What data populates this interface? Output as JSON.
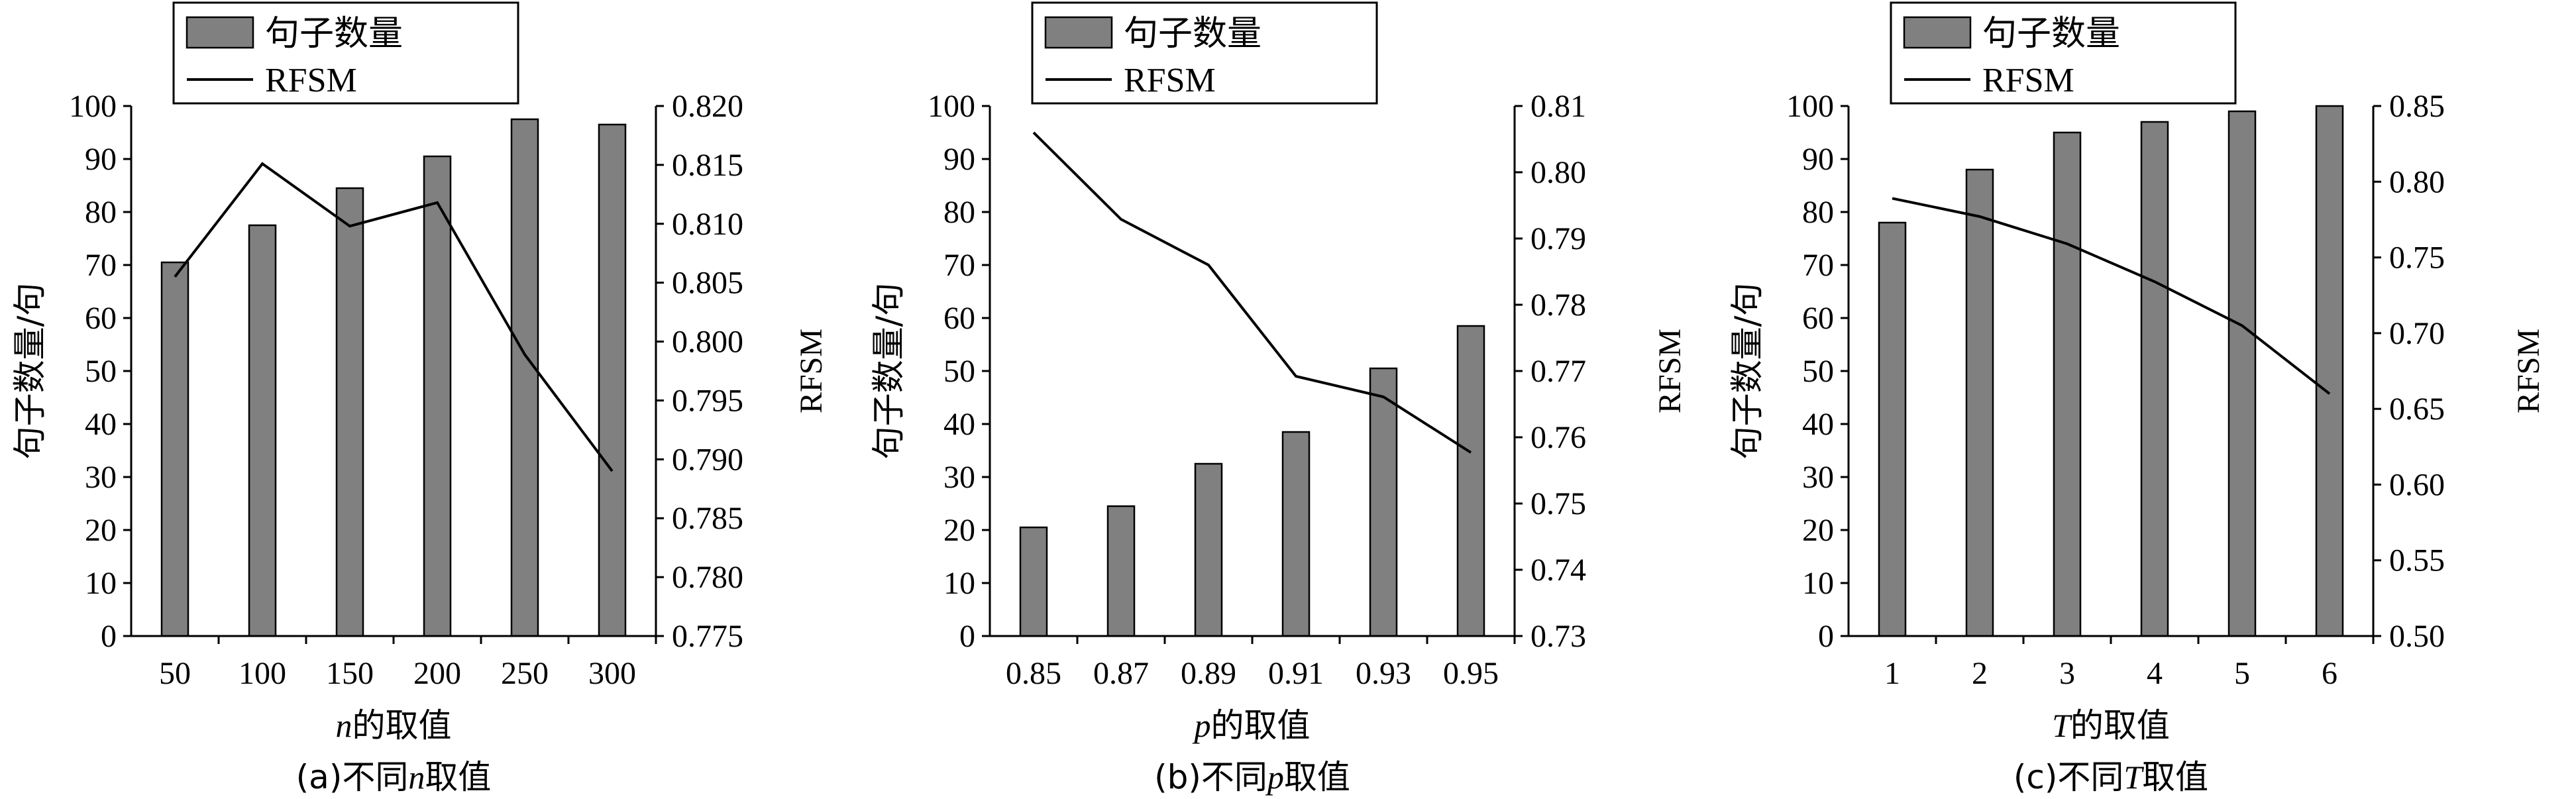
{
  "chart_data": [
    {
      "type": "bar+line",
      "caption": "(a)不同n取值",
      "caption_parts": [
        "(a)不同",
        "n",
        "取值"
      ],
      "xlabel_parts": [
        "n",
        "的取值"
      ],
      "categories": [
        "50",
        "100",
        "150",
        "200",
        "250",
        "300"
      ],
      "legend": {
        "placement": "top-left",
        "bar_label": "句子数量",
        "line_label": "RFSM"
      },
      "bar_series": {
        "name": "句子数量",
        "values": [
          70.5,
          77.5,
          84.5,
          90.5,
          97.5,
          96.5
        ],
        "color": "#808080"
      },
      "line_series": {
        "name": "RFSM",
        "values": [
          0.8055,
          0.8151,
          0.8098,
          0.8118,
          0.7989,
          0.789
        ],
        "color": "#000000"
      },
      "y_left": {
        "label": "句子数量/句",
        "lim": [
          0,
          100
        ],
        "ticks": [
          "0",
          "10",
          "20",
          "30",
          "40",
          "50",
          "60",
          "70",
          "80",
          "90",
          "100"
        ]
      },
      "y_right": {
        "label": "RFSM",
        "lim": [
          0.775,
          0.82
        ],
        "ticks": [
          "0.775",
          "0.780",
          "0.785",
          "0.790",
          "0.795",
          "0.800",
          "0.805",
          "0.810",
          "0.815",
          "0.820"
        ]
      }
    },
    {
      "type": "bar+line",
      "caption": "(b)不同p取值",
      "caption_parts": [
        "(b)不同",
        "p",
        "取值"
      ],
      "xlabel_parts": [
        "p",
        "的取值"
      ],
      "categories": [
        "0.85",
        "0.87",
        "0.89",
        "0.91",
        "0.93",
        "0.95"
      ],
      "legend": {
        "placement": "top-left",
        "bar_label": "句子数量",
        "line_label": "RFSM"
      },
      "bar_series": {
        "name": "句子数量",
        "values": [
          20.5,
          24.5,
          32.5,
          38.5,
          50.5,
          58.5
        ],
        "color": "#808080"
      },
      "line_series": {
        "name": "RFSM",
        "values": [
          0.806,
          0.7929,
          0.786,
          0.7692,
          0.7661,
          0.7577
        ],
        "color": "#000000"
      },
      "y_left": {
        "label": "句子数量/句",
        "lim": [
          0,
          100
        ],
        "ticks": [
          "0",
          "10",
          "20",
          "30",
          "40",
          "50",
          "60",
          "70",
          "80",
          "90",
          "100"
        ]
      },
      "y_right": {
        "label": "RFSM",
        "lim": [
          0.73,
          0.81
        ],
        "ticks": [
          "0.73",
          "0.74",
          "0.75",
          "0.76",
          "0.77",
          "0.78",
          "0.79",
          "0.80",
          "0.81"
        ]
      }
    },
    {
      "type": "bar+line",
      "caption": "(c)不同T取值",
      "caption_parts": [
        "(c)不同",
        "T",
        "取值"
      ],
      "xlabel_parts": [
        "T",
        "的取值"
      ],
      "categories": [
        "1",
        "2",
        "3",
        "4",
        "5",
        "6"
      ],
      "legend": {
        "placement": "top-left",
        "bar_label": "句子数量",
        "line_label": "RFSM"
      },
      "bar_series": {
        "name": "句子数量",
        "values": [
          78,
          88,
          95,
          97,
          99,
          100
        ],
        "color": "#808080"
      },
      "line_series": {
        "name": "RFSM",
        "values": [
          0.789,
          0.777,
          0.759,
          0.734,
          0.705,
          0.66
        ],
        "color": "#000000"
      },
      "y_left": {
        "label": "句子数量/句",
        "lim": [
          0,
          100
        ],
        "ticks": [
          "0",
          "10",
          "20",
          "30",
          "40",
          "50",
          "60",
          "70",
          "80",
          "90",
          "100"
        ]
      },
      "y_right": {
        "label": "RFSM",
        "lim": [
          0.5,
          0.85
        ],
        "ticks": [
          "0.50",
          "0.55",
          "0.60",
          "0.65",
          "0.70",
          "0.75",
          "0.80",
          "0.85"
        ]
      }
    }
  ]
}
